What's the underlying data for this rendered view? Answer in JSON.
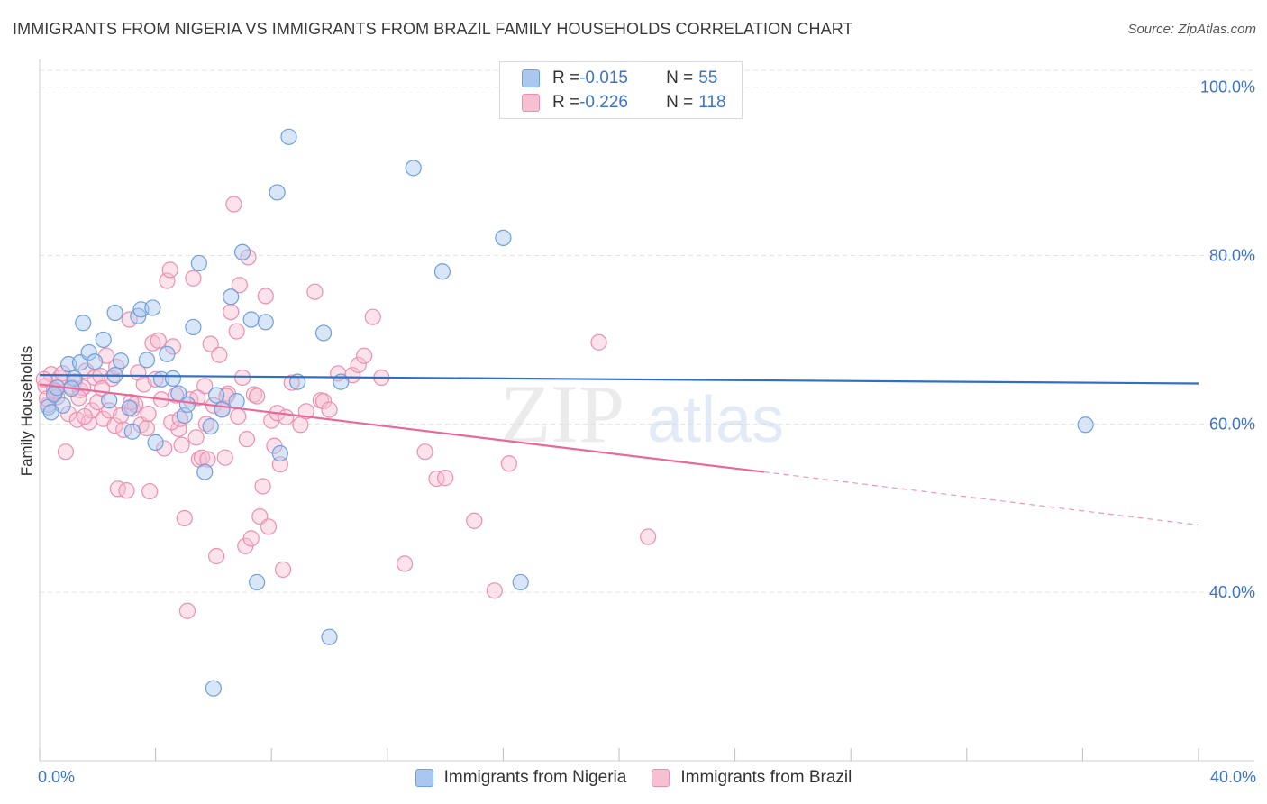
{
  "title": "IMMIGRANTS FROM NIGERIA VS IMMIGRANTS FROM BRAZIL FAMILY HOUSEHOLDS CORRELATION CHART",
  "source": "Source: ZipAtlas.com",
  "watermark": {
    "zip": "ZIP",
    "atlas": "atlas"
  },
  "colors": {
    "nigeria_fill": "#a9c7ef",
    "nigeria_stroke": "#6f9fdc",
    "nigeria_line": "#2f6fc4",
    "brazil_fill": "#f6bfd2",
    "brazil_stroke": "#ec8fb0",
    "brazil_line": "#e8689a",
    "axis_text": "#3b74c9",
    "grid": "#e3e3e3"
  },
  "legend_top": [
    {
      "r_label": "R = ",
      "r_value": "-0.015",
      "n_label": "N = ",
      "n_value": "55"
    },
    {
      "r_label": "R = ",
      "r_value": "-0.226",
      "n_label": "N = ",
      "n_value": "118"
    }
  ],
  "legend_bottom": [
    "Immigrants from Nigeria",
    "Immigrants from Brazil"
  ],
  "chart_data": {
    "type": "scatter",
    "title": "IMMIGRANTS FROM NIGERIA VS IMMIGRANTS FROM BRAZIL FAMILY HOUSEHOLDS CORRELATION CHART",
    "xlabel": "",
    "ylabel": "Family Households",
    "xlim": [
      0,
      40
    ],
    "ylim": [
      20,
      102
    ],
    "x_tick_labels": [
      "0.0%",
      "40.0%"
    ],
    "y_ticks": [
      40,
      60,
      80,
      100
    ],
    "y_tick_labels": [
      "40.0%",
      "60.0%",
      "80.0%",
      "100.0%"
    ],
    "grid": true,
    "series": [
      {
        "name": "Immigrants from Nigeria",
        "r": -0.015,
        "n": 55,
        "trend": {
          "x": [
            0,
            40
          ],
          "y": [
            65.8,
            64.8
          ]
        },
        "points": [
          [
            0.3,
            62.0
          ],
          [
            0.5,
            63.5
          ],
          [
            0.6,
            64.3
          ],
          [
            0.8,
            62.2
          ],
          [
            1.0,
            67.1
          ],
          [
            1.2,
            65.4
          ],
          [
            1.4,
            67.3
          ],
          [
            1.5,
            72.0
          ],
          [
            1.7,
            68.5
          ],
          [
            1.9,
            67.4
          ],
          [
            2.2,
            70.0
          ],
          [
            2.4,
            62.8
          ],
          [
            2.6,
            73.2
          ],
          [
            2.8,
            67.5
          ],
          [
            3.1,
            61.9
          ],
          [
            3.2,
            59.1
          ],
          [
            3.4,
            72.8
          ],
          [
            3.5,
            73.6
          ],
          [
            3.7,
            67.6
          ],
          [
            3.9,
            73.8
          ],
          [
            4.0,
            57.8
          ],
          [
            4.2,
            65.3
          ],
          [
            4.4,
            68.3
          ],
          [
            4.6,
            65.4
          ],
          [
            4.8,
            63.6
          ],
          [
            5.0,
            61.0
          ],
          [
            5.1,
            62.3
          ],
          [
            5.3,
            71.5
          ],
          [
            5.5,
            79.1
          ],
          [
            5.7,
            54.3
          ],
          [
            5.9,
            59.7
          ],
          [
            6.1,
            63.4
          ],
          [
            6.3,
            61.7
          ],
          [
            6.6,
            75.1
          ],
          [
            6.8,
            62.7
          ],
          [
            7.0,
            80.4
          ],
          [
            7.3,
            72.4
          ],
          [
            7.5,
            41.2
          ],
          [
            7.8,
            72.1
          ],
          [
            8.2,
            87.5
          ],
          [
            8.3,
            56.5
          ],
          [
            8.6,
            94.1
          ],
          [
            8.9,
            65.0
          ],
          [
            9.8,
            70.8
          ],
          [
            10.0,
            34.7
          ],
          [
            10.4,
            65.0
          ],
          [
            12.9,
            90.4
          ],
          [
            13.9,
            78.1
          ],
          [
            16.0,
            82.1
          ],
          [
            16.6,
            41.2
          ],
          [
            36.1,
            59.9
          ],
          [
            6.0,
            28.6
          ],
          [
            2.6,
            65.8
          ],
          [
            1.1,
            64.2
          ],
          [
            0.4,
            61.4
          ]
        ]
      },
      {
        "name": "Immigrants from Brazil",
        "r": -0.226,
        "n": 118,
        "trend": {
          "x": [
            0,
            25
          ],
          "y": [
            64.7,
            54.3
          ]
        },
        "trend_dashed": {
          "x": [
            25,
            40
          ],
          "y": [
            54.3,
            48.0
          ]
        },
        "points": [
          [
            0.2,
            64.5
          ],
          [
            0.3,
            62.3
          ],
          [
            0.4,
            65.9
          ],
          [
            0.5,
            64.1
          ],
          [
            0.6,
            63.2
          ],
          [
            0.7,
            65.5
          ],
          [
            0.8,
            66.0
          ],
          [
            0.9,
            56.7
          ],
          [
            1.0,
            61.2
          ],
          [
            1.1,
            64.4
          ],
          [
            1.2,
            65.0
          ],
          [
            1.3,
            60.5
          ],
          [
            1.4,
            64.0
          ],
          [
            1.5,
            64.3
          ],
          [
            1.6,
            66.3
          ],
          [
            1.7,
            60.2
          ],
          [
            1.8,
            61.6
          ],
          [
            1.9,
            65.5
          ],
          [
            2.0,
            62.6
          ],
          [
            2.1,
            65.7
          ],
          [
            2.2,
            60.6
          ],
          [
            2.3,
            68.1
          ],
          [
            2.4,
            61.6
          ],
          [
            2.5,
            65.4
          ],
          [
            2.6,
            59.8
          ],
          [
            2.7,
            52.3
          ],
          [
            2.8,
            61.0
          ],
          [
            2.9,
            59.3
          ],
          [
            3.0,
            52.1
          ],
          [
            3.1,
            72.4
          ],
          [
            3.2,
            61.8
          ],
          [
            3.3,
            62.3
          ],
          [
            3.4,
            66.1
          ],
          [
            3.5,
            59.9
          ],
          [
            3.6,
            64.7
          ],
          [
            3.7,
            59.5
          ],
          [
            3.8,
            52.0
          ],
          [
            3.9,
            69.6
          ],
          [
            4.0,
            65.3
          ],
          [
            4.1,
            69.9
          ],
          [
            4.2,
            62.9
          ],
          [
            4.3,
            57.1
          ],
          [
            4.4,
            77.0
          ],
          [
            4.5,
            78.3
          ],
          [
            4.6,
            69.2
          ],
          [
            4.7,
            63.4
          ],
          [
            4.8,
            59.4
          ],
          [
            4.9,
            57.5
          ],
          [
            5.0,
            48.8
          ],
          [
            5.1,
            37.8
          ],
          [
            5.2,
            62.9
          ],
          [
            5.3,
            77.3
          ],
          [
            5.4,
            58.4
          ],
          [
            5.5,
            55.8
          ],
          [
            5.6,
            56.0
          ],
          [
            5.7,
            64.5
          ],
          [
            5.8,
            55.8
          ],
          [
            5.9,
            69.5
          ],
          [
            6.0,
            62.2
          ],
          [
            6.1,
            44.3
          ],
          [
            6.2,
            68.2
          ],
          [
            6.3,
            61.8
          ],
          [
            6.4,
            56.0
          ],
          [
            6.5,
            63.6
          ],
          [
            6.6,
            73.3
          ],
          [
            6.7,
            86.1
          ],
          [
            6.8,
            71.0
          ],
          [
            6.9,
            76.5
          ],
          [
            7.0,
            65.5
          ],
          [
            7.1,
            45.5
          ],
          [
            7.2,
            79.8
          ],
          [
            7.3,
            46.4
          ],
          [
            7.4,
            63.5
          ],
          [
            7.5,
            63.3
          ],
          [
            7.6,
            49.0
          ],
          [
            7.7,
            52.6
          ],
          [
            7.8,
            75.2
          ],
          [
            7.9,
            47.8
          ],
          [
            8.0,
            60.4
          ],
          [
            8.1,
            57.4
          ],
          [
            8.2,
            61.3
          ],
          [
            8.3,
            55.2
          ],
          [
            8.4,
            42.7
          ],
          [
            8.5,
            60.8
          ],
          [
            9.0,
            59.9
          ],
          [
            9.5,
            75.7
          ],
          [
            9.7,
            62.8
          ],
          [
            9.8,
            62.7
          ],
          [
            10.0,
            61.7
          ],
          [
            10.3,
            66.0
          ],
          [
            10.8,
            65.8
          ],
          [
            11.0,
            67.0
          ],
          [
            11.2,
            68.1
          ],
          [
            11.5,
            72.7
          ],
          [
            11.8,
            65.5
          ],
          [
            12.6,
            43.4
          ],
          [
            13.3,
            56.7
          ],
          [
            13.7,
            53.5
          ],
          [
            14.0,
            53.6
          ],
          [
            15.0,
            48.5
          ],
          [
            15.7,
            40.2
          ],
          [
            16.2,
            55.3
          ],
          [
            19.3,
            69.7
          ],
          [
            21.0,
            46.6
          ],
          [
            0.25,
            63.0
          ],
          [
            0.55,
            63.9
          ],
          [
            1.35,
            63.1
          ],
          [
            2.15,
            64.2
          ],
          [
            2.65,
            66.8
          ],
          [
            3.75,
            61.2
          ],
          [
            4.55,
            60.2
          ],
          [
            5.75,
            60.0
          ],
          [
            6.45,
            63.3
          ],
          [
            7.15,
            58.2
          ],
          [
            0.15,
            65.3
          ],
          [
            1.55,
            60.9
          ],
          [
            3.15,
            62.6
          ],
          [
            4.85,
            60.6
          ],
          [
            5.45,
            63.1
          ],
          [
            6.85,
            60.9
          ],
          [
            8.7,
            64.9
          ],
          [
            9.2,
            61.5
          ]
        ]
      }
    ]
  }
}
